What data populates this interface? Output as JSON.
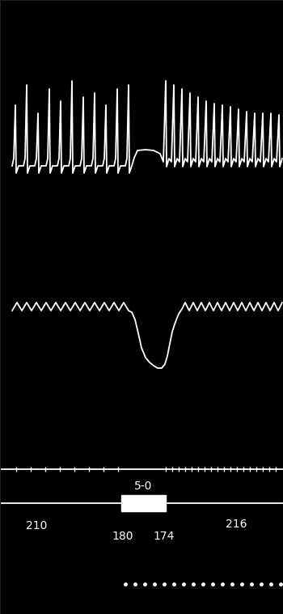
{
  "chart_data": {
    "type": "line",
    "tick_labels": false,
    "grid": false,
    "xlim": [
      0,
      350
    ],
    "ylim": [
      759,
      0
    ],
    "series": [
      {
        "color": "#ffffff",
        "type": "line",
        "line_style": "solid",
        "marker": "none",
        "x": [
          15,
          17,
          19,
          20,
          23,
          29,
          31,
          33,
          34,
          37,
          43,
          45,
          47,
          48,
          51,
          57,
          59,
          61,
          62,
          65,
          71,
          73,
          75,
          76,
          79,
          85,
          87,
          89,
          90,
          93,
          99,
          101,
          103,
          104,
          107,
          113,
          115,
          117,
          118,
          121,
          127,
          129,
          131,
          132,
          135,
          141,
          143,
          145,
          146,
          149,
          155,
          157,
          159,
          160,
          163,
          166,
          170,
          180,
          190,
          198,
          202,
          205,
          206,
          209,
          212,
          215,
          216,
          219,
          222,
          225,
          226,
          229,
          232,
          235,
          236,
          239,
          242,
          245,
          246,
          249,
          252,
          255,
          256,
          259,
          262,
          265,
          266,
          269,
          272,
          275,
          276,
          279,
          282,
          285,
          286,
          289,
          292,
          295,
          296,
          299,
          302,
          305,
          306,
          309,
          312,
          315,
          316,
          319,
          322,
          325,
          326,
          329,
          332,
          335,
          336,
          339,
          342,
          345,
          346,
          349
        ],
        "values": [
          205,
          196,
          130,
          214,
          205,
          205,
          196,
          105,
          214,
          205,
          205,
          196,
          140,
          214,
          205,
          205,
          196,
          110,
          214,
          205,
          205,
          196,
          125,
          214,
          205,
          205,
          196,
          100,
          214,
          205,
          205,
          196,
          120,
          214,
          205,
          205,
          196,
          115,
          214,
          205,
          205,
          196,
          130,
          214,
          205,
          205,
          196,
          110,
          214,
          205,
          205,
          196,
          105,
          214,
          205,
          195,
          186,
          185,
          186,
          190,
          200,
          100,
          206,
          196,
          200,
          105,
          206,
          196,
          200,
          110,
          206,
          196,
          200,
          115,
          206,
          196,
          200,
          120,
          206,
          196,
          200,
          125,
          206,
          196,
          200,
          128,
          206,
          196,
          200,
          130,
          206,
          196,
          200,
          132,
          206,
          196,
          200,
          135,
          206,
          196,
          200,
          138,
          206,
          196,
          200,
          140,
          206,
          196,
          200,
          140,
          206,
          196,
          200,
          140,
          206,
          196,
          200,
          142,
          206,
          196
        ]
      },
      {
        "color": "#ffffff",
        "type": "line",
        "line_style": "solid",
        "marker": "none",
        "x": [
          15,
          21,
          27,
          33,
          39,
          45,
          51,
          57,
          63,
          69,
          75,
          81,
          87,
          93,
          99,
          105,
          111,
          117,
          123,
          129,
          135,
          141,
          147,
          153,
          159,
          163,
          167,
          171,
          175,
          180,
          185,
          190,
          195,
          200,
          204,
          207,
          210,
          213,
          217,
          221,
          225,
          229,
          234,
          239,
          244,
          249,
          254,
          259,
          264,
          269,
          274,
          279,
          284,
          289,
          294,
          299,
          304,
          309,
          314,
          319,
          324,
          329,
          334,
          339,
          344,
          349
        ],
        "values": [
          384,
          374,
          384,
          374,
          384,
          374,
          384,
          374,
          384,
          374,
          384,
          374,
          384,
          374,
          384,
          374,
          384,
          374,
          384,
          374,
          384,
          374,
          384,
          374,
          384,
          386,
          395,
          412,
          430,
          442,
          448,
          452,
          455,
          455,
          450,
          440,
          425,
          410,
          398,
          388,
          382,
          374,
          384,
          374,
          384,
          374,
          384,
          374,
          384,
          374,
          384,
          374,
          384,
          374,
          384,
          374,
          384,
          374,
          384,
          374,
          384,
          374,
          384,
          374,
          384,
          374
        ]
      },
      {
        "color": "#ffffff",
        "type": "line",
        "line_style": "solid",
        "marker": "none",
        "x": [
          0,
          350
        ],
        "values": [
          580,
          580
        ]
      },
      {
        "color": "#ffffff",
        "type": "line",
        "line_style": "none",
        "marker": "vline",
        "x": [
          20,
          38,
          56,
          74,
          92,
          110,
          128,
          146,
          205,
          213,
          221,
          229,
          237,
          245,
          253,
          261,
          269,
          277,
          285,
          293,
          301,
          309,
          317,
          325,
          333,
          341
        ],
        "values": [
          580,
          580,
          580,
          580,
          580,
          580,
          580,
          580,
          580,
          580,
          580,
          580,
          580,
          580,
          580,
          580,
          580,
          580,
          580,
          580,
          580,
          580,
          580,
          580,
          580,
          580
        ]
      },
      {
        "color": "#ffffff",
        "type": "line",
        "line_style": "solid",
        "marker": "none",
        "x": [
          0,
          350
        ],
        "values": [
          622,
          622
        ]
      },
      {
        "color": "#ffffff",
        "type": "line",
        "line_style": "none",
        "marker": "dot",
        "x": [
          155,
          167,
          179,
          191,
          203,
          215,
          227,
          239,
          251,
          263,
          275,
          287,
          299,
          311,
          323,
          335,
          347
        ],
        "values": [
          722,
          722,
          722,
          722,
          722,
          722,
          722,
          722,
          722,
          722,
          722,
          722,
          722,
          722,
          722,
          722,
          722
        ]
      }
    ],
    "stimulus": {
      "label": "5-0",
      "start": 150,
      "end": 205,
      "y": [
        612,
        632
      ],
      "color": "#ffffff"
    },
    "annotations": [
      {
        "text": "210",
        "x": 45,
        "y": 650
      },
      {
        "text": "180",
        "x": 152,
        "y": 663
      },
      {
        "text": "174",
        "x": 203,
        "y": 663
      },
      {
        "text": "216",
        "x": 292,
        "y": 648
      }
    ]
  }
}
